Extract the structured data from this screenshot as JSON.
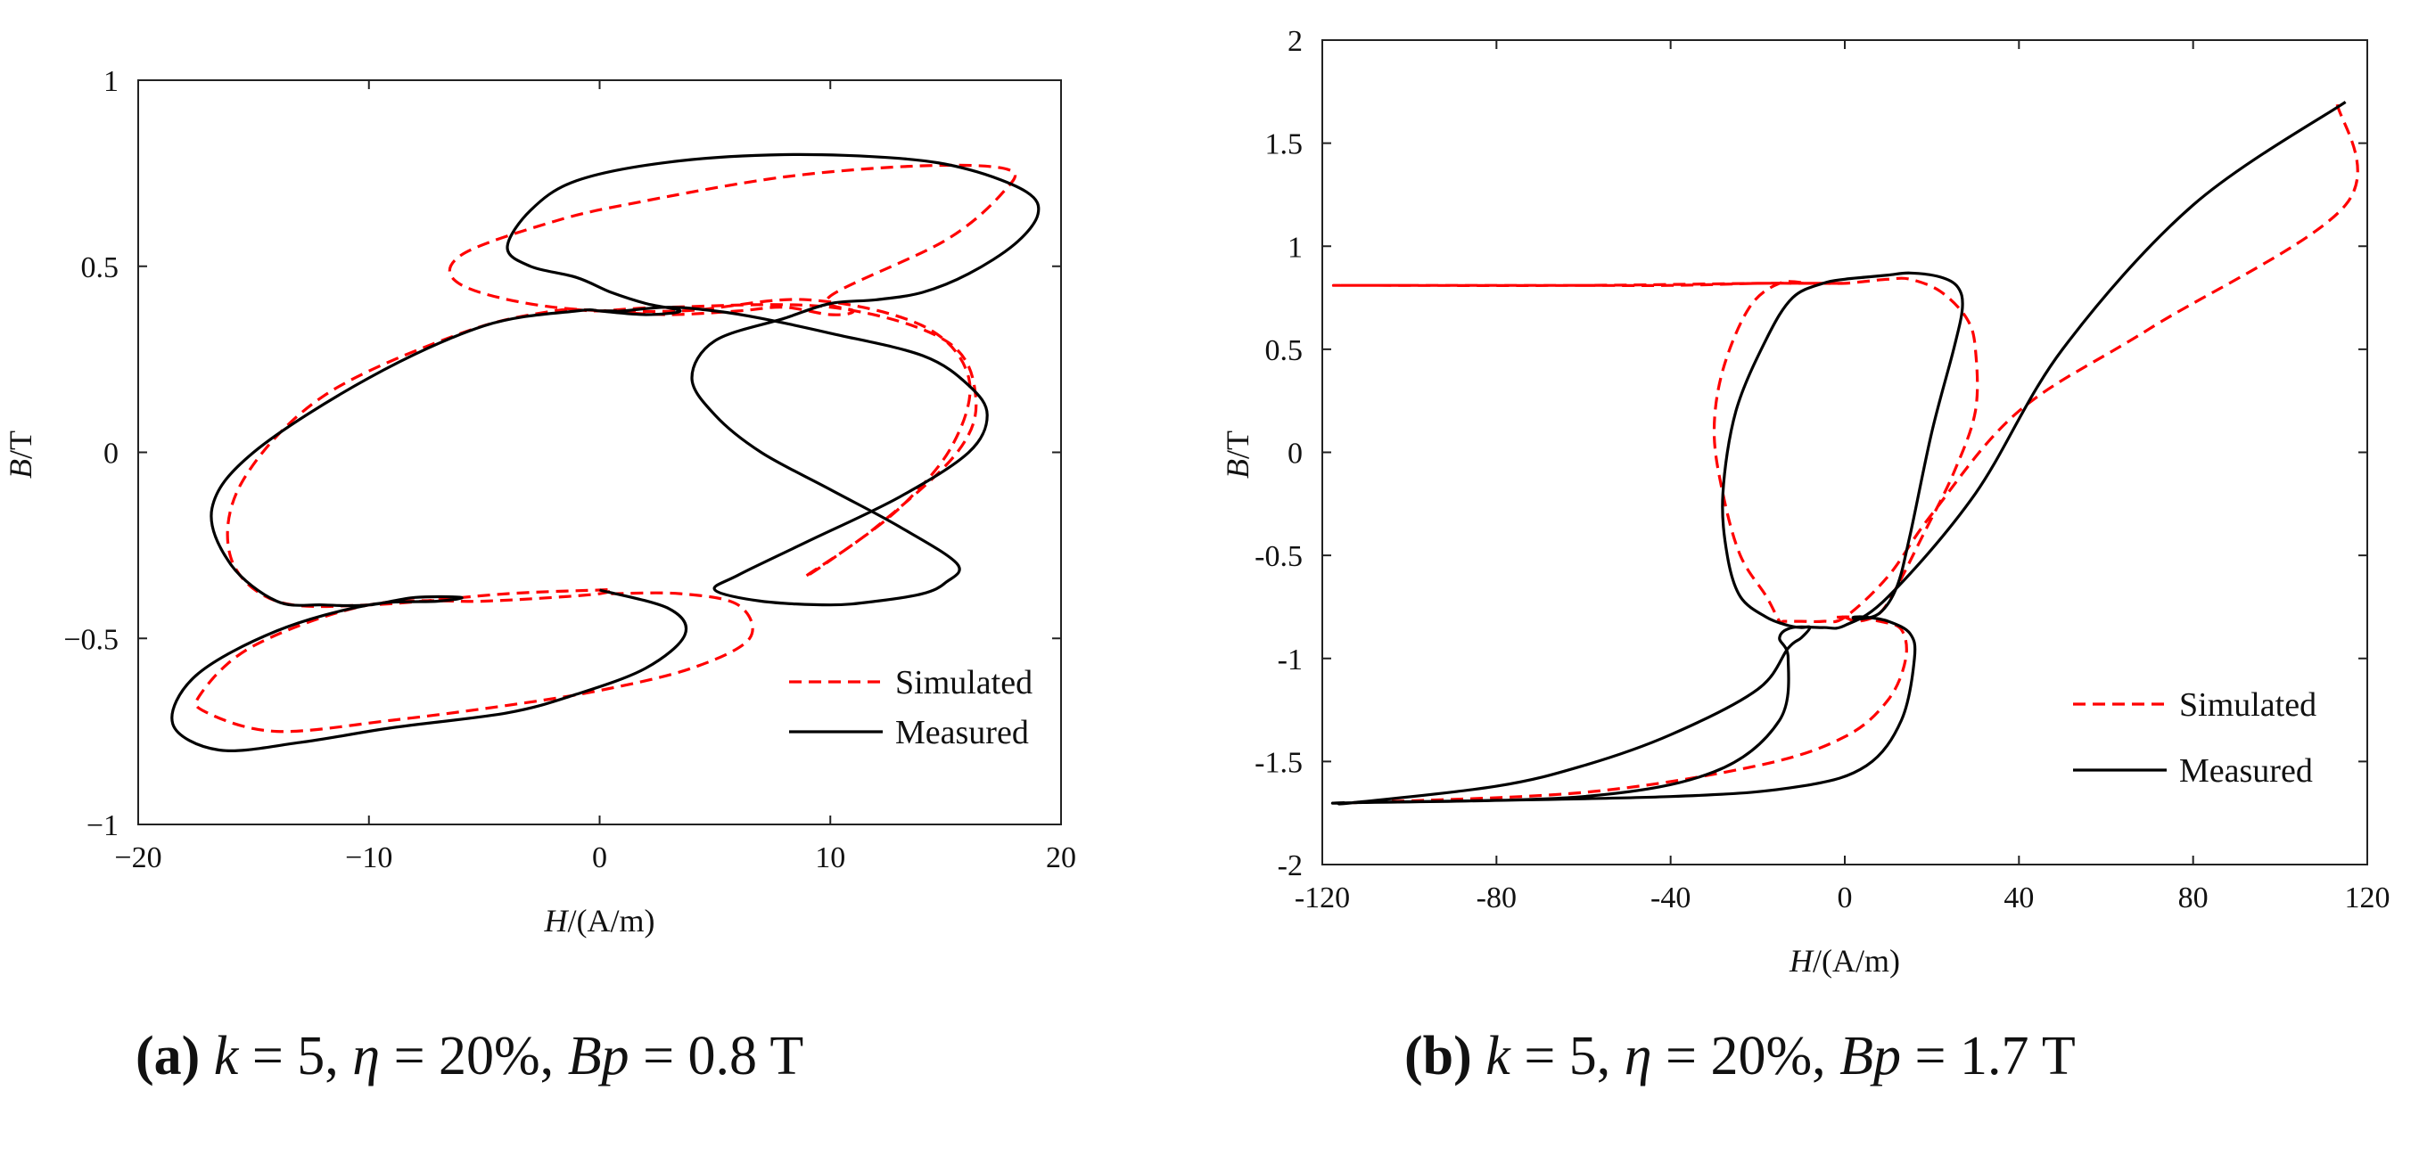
{
  "chart_data": [
    {
      "type": "line",
      "panel": "a",
      "title": "",
      "xlabel_italic": "H",
      "xlabel_rest": "/(A/m)",
      "ylabel_italic": "B",
      "ylabel_rest": "/T",
      "xlim": [
        -20,
        20
      ],
      "ylim": [
        -1,
        1
      ],
      "xticks": [
        -20,
        -10,
        0,
        10,
        20
      ],
      "xtick_labels": [
        "−20",
        "−10",
        "0",
        "10",
        "20"
      ],
      "yticks": [
        -1,
        -0.5,
        0,
        0.5,
        1
      ],
      "ytick_labels": [
        "−1",
        "−0.5",
        "0",
        "0.5",
        "1"
      ],
      "legend_position": "bottom-right",
      "series": [
        {
          "name": "Simulated",
          "color": "#ff0000",
          "style": "dashed",
          "x": [
            0.5,
            3.5,
            6,
            6.5,
            4,
            0,
            -4,
            -9,
            -14,
            -17,
            -17.3,
            -15,
            -10,
            -5,
            -2,
            0,
            0.5,
            0,
            -4,
            -10,
            -14,
            -16,
            -15.5,
            -12,
            -6,
            -2,
            0,
            3,
            10,
            15,
            16.3,
            15.5,
            12,
            9,
            10,
            13,
            15.3,
            16,
            14,
            9,
            3.5,
            -2,
            -6,
            -6,
            -2,
            1.5,
            8,
            14,
            17.7,
            17.5,
            15,
            10,
            11,
            10,
            8,
            6,
            3,
            0
          ],
          "y": [
            -0.38,
            -0.38,
            -0.41,
            -0.5,
            -0.58,
            -0.64,
            -0.68,
            -0.72,
            -0.75,
            -0.7,
            -0.65,
            -0.52,
            -0.41,
            -0.4,
            -0.39,
            -0.38,
            -0.37,
            -0.37,
            -0.38,
            -0.41,
            -0.4,
            -0.28,
            -0.08,
            0.15,
            0.32,
            0.38,
            0.38,
            0.39,
            0.39,
            0.3,
            0.15,
            0.0,
            -0.2,
            -0.33,
            -0.29,
            -0.15,
            0.02,
            0.2,
            0.34,
            0.41,
            0.38,
            0.39,
            0.45,
            0.53,
            0.62,
            0.67,
            0.74,
            0.77,
            0.76,
            0.7,
            0.57,
            0.42,
            0.38,
            0.37,
            0.39,
            0.38,
            0.37,
            0.38
          ]
        },
        {
          "name": "Measured",
          "color": "#000000",
          "style": "solid",
          "x": [
            0,
            3,
            3.7,
            2,
            -1,
            -4,
            -9,
            -13,
            -16.5,
            -18.5,
            -17.5,
            -14,
            -10,
            -7,
            -6,
            -8,
            -10,
            -12,
            -14,
            -16,
            -16.8,
            -15,
            -10,
            -5,
            -1,
            0,
            0.5,
            0.7,
            1,
            3,
            5,
            7,
            10,
            14,
            16,
            16.8,
            16,
            13,
            9,
            6,
            5,
            7,
            10,
            12,
            14,
            15,
            15.5,
            13,
            10,
            7,
            5,
            4,
            5,
            8,
            10,
            12,
            14,
            16,
            18,
            19,
            18.5,
            16,
            13,
            8,
            3,
            -1,
            -3,
            -4,
            -3,
            -1,
            0.5,
            2,
            3.5,
            2,
            0
          ],
          "y": [
            -0.37,
            -0.42,
            -0.49,
            -0.58,
            -0.65,
            -0.7,
            -0.74,
            -0.78,
            -0.8,
            -0.73,
            -0.6,
            -0.48,
            -0.41,
            -0.4,
            -0.39,
            -0.39,
            -0.41,
            -0.41,
            -0.4,
            -0.3,
            -0.15,
            0.0,
            0.2,
            0.34,
            0.38,
            0.38,
            0.38,
            0.38,
            0.38,
            0.39,
            0.38,
            0.36,
            0.32,
            0.26,
            0.18,
            0.1,
            0.0,
            -0.12,
            -0.24,
            -0.33,
            -0.37,
            -0.4,
            -0.41,
            -0.4,
            -0.38,
            -0.35,
            -0.3,
            -0.2,
            -0.1,
            0.0,
            0.1,
            0.2,
            0.3,
            0.36,
            0.4,
            0.41,
            0.43,
            0.48,
            0.56,
            0.64,
            0.7,
            0.76,
            0.79,
            0.8,
            0.78,
            0.73,
            0.65,
            0.55,
            0.5,
            0.47,
            0.43,
            0.4,
            0.38,
            0.37,
            0.38
          ]
        }
      ]
    },
    {
      "type": "line",
      "panel": "b",
      "title": "",
      "xlabel_italic": "H",
      "xlabel_rest": "/(A/m)",
      "ylabel_italic": "B",
      "ylabel_rest": "/T",
      "xlim": [
        -120,
        120
      ],
      "ylim": [
        -2,
        2
      ],
      "xticks": [
        -120,
        -80,
        -40,
        0,
        40,
        80,
        120
      ],
      "xtick_labels": [
        "-120",
        "-80",
        "-40",
        "0",
        "40",
        "80",
        "120"
      ],
      "yticks": [
        -2,
        -1.5,
        -1,
        -0.5,
        0,
        0.5,
        1,
        1.5,
        2
      ],
      "ytick_labels": [
        "-2",
        "-1.5",
        "-1",
        "-0.5",
        "0",
        "0.5",
        "1",
        "1.5",
        "2"
      ],
      "legend_position": "bottom-right",
      "series": [
        {
          "name": "Simulated",
          "color": "#ff0000",
          "style": "dashed",
          "x": [
            -113,
            -60,
            -20,
            0,
            10,
            14,
            13,
            8,
            2,
            -2,
            0,
            3,
            8,
            12,
            18,
            25,
            30,
            30,
            28,
            22,
            15,
            10,
            5,
            0,
            -5,
            -12,
            -20,
            -40,
            -65,
            -113,
            -115,
            -110,
            -60,
            -20,
            -5,
            0,
            -3,
            -8,
            -15,
            -22,
            -28,
            -30,
            -28,
            -24,
            -18,
            -15,
            -14,
            -10,
            -5,
            0,
            10,
            20,
            40,
            70,
            115,
            113
          ],
          "y": [
            -1.7,
            -1.65,
            -1.52,
            -1.38,
            -1.2,
            -1.0,
            -0.86,
            -0.82,
            -0.8,
            -0.8,
            -0.8,
            -0.82,
            -0.78,
            -0.65,
            -0.4,
            -0.1,
            0.2,
            0.5,
            0.65,
            0.78,
            0.84,
            0.84,
            0.83,
            0.82,
            0.82,
            0.82,
            0.82,
            0.81,
            0.81,
            0.81,
            0.81,
            0.81,
            0.81,
            0.82,
            0.82,
            0.82,
            0.82,
            0.82,
            0.82,
            0.7,
            0.4,
            0.1,
            -0.2,
            -0.5,
            -0.7,
            -0.82,
            -0.82,
            -0.82,
            -0.82,
            -0.8,
            -0.6,
            -0.3,
            0.2,
            0.6,
            1.2,
            1.7
          ]
        },
        {
          "name": "Measured",
          "color": "#000000",
          "style": "solid",
          "x": [
            -113,
            -40,
            -10,
            5,
            13,
            16,
            15,
            10,
            5,
            2,
            3,
            8,
            12,
            15,
            20,
            25,
            27,
            26,
            22,
            15,
            10,
            5,
            0,
            -5,
            -12,
            -18,
            -25,
            -28,
            -27,
            -24,
            -18,
            -13,
            -10,
            -8,
            -10,
            -13,
            -20,
            -40,
            -60,
            -80,
            -113,
            -115,
            -113,
            -60,
            -30,
            -15,
            -13,
            -15,
            -12,
            -5,
            0,
            10,
            30,
            50,
            80,
            115
          ],
          "y": [
            -1.7,
            -1.67,
            -1.62,
            -1.52,
            -1.3,
            -1.0,
            -0.88,
            -0.82,
            -0.8,
            -0.8,
            -0.81,
            -0.78,
            -0.65,
            -0.4,
            0.1,
            0.5,
            0.7,
            0.8,
            0.85,
            0.87,
            0.86,
            0.85,
            0.84,
            0.82,
            0.75,
            0.55,
            0.2,
            -0.2,
            -0.5,
            -0.7,
            -0.8,
            -0.84,
            -0.85,
            -0.85,
            -0.9,
            -0.95,
            -1.15,
            -1.37,
            -1.52,
            -1.62,
            -1.7,
            -1.7,
            -1.7,
            -1.67,
            -1.55,
            -1.3,
            -1.0,
            -0.9,
            -0.85,
            -0.85,
            -0.84,
            -0.7,
            -0.2,
            0.5,
            1.2,
            1.7
          ]
        }
      ]
    }
  ],
  "captions": [
    {
      "label": "(a)",
      "text_k": "k",
      "text_mid1": " = 5, ",
      "text_eta": "η",
      "text_mid2": " = 20%, ",
      "text_bp": "Bp",
      "text_end": " = 0.8 T"
    },
    {
      "label": "(b)",
      "text_k": "k",
      "text_mid1": " = 5, ",
      "text_eta": "η",
      "text_mid2": " = 20%, ",
      "text_bp": "Bp",
      "text_end": " = 1.7 T"
    }
  ]
}
